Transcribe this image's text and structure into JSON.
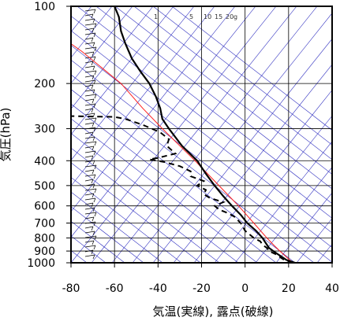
{
  "chart_data": {
    "type": "skew-t",
    "xlabel": "気温(実線), 露点(破線)",
    "ylabel": "気圧(hPa)",
    "xlim": [
      -80,
      40
    ],
    "plim": [
      1000,
      100
    ],
    "x_ticks": [
      -80,
      -60,
      -40,
      -20,
      0,
      20,
      40
    ],
    "x_tick_labels": [
      "-80",
      "-60",
      "-40",
      "-20",
      "0",
      "20",
      "40"
    ],
    "p_ticks": [
      1000,
      900,
      800,
      700,
      600,
      500,
      400,
      300,
      200,
      100
    ],
    "p_tick_labels": [
      "1000",
      "900",
      "800",
      "700",
      "600",
      "500",
      "400",
      "300",
      "200",
      "100"
    ],
    "mixing_ratio_labels": [
      "1",
      "5",
      "10",
      "15",
      "20",
      "g"
    ],
    "grid": true,
    "colors": {
      "temperature": "#000000",
      "dewpoint": "#000000",
      "parcel": "#ff2020",
      "isotherm": "#3030c0",
      "adiabat": "#3030c0",
      "frame": "#000000"
    },
    "temperature": [
      {
        "p": 1000,
        "x": 23
      },
      {
        "p": 975,
        "x": 19
      },
      {
        "p": 950,
        "x": 17
      },
      {
        "p": 925,
        "x": 15
      },
      {
        "p": 900,
        "x": 13
      },
      {
        "p": 875,
        "x": 11
      },
      {
        "p": 850,
        "x": 10
      },
      {
        "p": 825,
        "x": 9
      },
      {
        "p": 800,
        "x": 8
      },
      {
        "p": 750,
        "x": 5
      },
      {
        "p": 700,
        "x": 1
      },
      {
        "p": 650,
        "x": -2
      },
      {
        "p": 600,
        "x": -6
      },
      {
        "p": 550,
        "x": -10
      },
      {
        "p": 500,
        "x": -14
      },
      {
        "p": 450,
        "x": -18
      },
      {
        "p": 400,
        "x": -22
      },
      {
        "p": 350,
        "x": -29
      },
      {
        "p": 300,
        "x": -35
      },
      {
        "p": 275,
        "x": -38
      },
      {
        "p": 250,
        "x": -39
      },
      {
        "p": 225,
        "x": -41
      },
      {
        "p": 200,
        "x": -44
      },
      {
        "p": 180,
        "x": -48
      },
      {
        "p": 160,
        "x": -52
      },
      {
        "p": 140,
        "x": -55
      },
      {
        "p": 125,
        "x": -57
      },
      {
        "p": 110,
        "x": -58
      },
      {
        "p": 100,
        "x": -60
      }
    ],
    "dewpoint": [
      {
        "p": 1000,
        "x": 22
      },
      {
        "p": 975,
        "x": 18
      },
      {
        "p": 950,
        "x": 16
      },
      {
        "p": 925,
        "x": 14
      },
      {
        "p": 900,
        "x": 11
      },
      {
        "p": 875,
        "x": 10
      },
      {
        "p": 850,
        "x": 8
      },
      {
        "p": 825,
        "x": 7
      },
      {
        "p": 800,
        "x": 4
      },
      {
        "p": 750,
        "x": 0
      },
      {
        "p": 700,
        "x": -2
      },
      {
        "p": 660,
        "x": -5
      },
      {
        "p": 640,
        "x": -8
      },
      {
        "p": 620,
        "x": -12
      },
      {
        "p": 600,
        "x": -14
      },
      {
        "p": 580,
        "x": -10
      },
      {
        "p": 560,
        "x": -16
      },
      {
        "p": 540,
        "x": -19
      },
      {
        "p": 520,
        "x": -18
      },
      {
        "p": 500,
        "x": -22
      },
      {
        "p": 480,
        "x": -19
      },
      {
        "p": 460,
        "x": -25
      },
      {
        "p": 440,
        "x": -25
      },
      {
        "p": 420,
        "x": -30
      },
      {
        "p": 405,
        "x": -37
      },
      {
        "p": 395,
        "x": -44
      },
      {
        "p": 390,
        "x": -40
      },
      {
        "p": 375,
        "x": -32
      },
      {
        "p": 350,
        "x": -36
      },
      {
        "p": 330,
        "x": -35
      },
      {
        "p": 310,
        "x": -39
      },
      {
        "p": 290,
        "x": -47
      },
      {
        "p": 275,
        "x": -55
      },
      {
        "p": 270,
        "x": -60
      },
      {
        "p": 268,
        "x": -80
      }
    ],
    "parcel": [
      {
        "p": 1000,
        "x": 22
      },
      {
        "p": 950,
        "x": 19
      },
      {
        "p": 900,
        "x": 16
      },
      {
        "p": 850,
        "x": 13
      },
      {
        "p": 800,
        "x": 10
      },
      {
        "p": 700,
        "x": 4
      },
      {
        "p": 600,
        "x": -3
      },
      {
        "p": 500,
        "x": -12
      },
      {
        "p": 400,
        "x": -23
      },
      {
        "p": 300,
        "x": -38
      },
      {
        "p": 250,
        "x": -47
      },
      {
        "p": 200,
        "x": -57
      },
      {
        "p": 150,
        "x": -75
      },
      {
        "p": 140,
        "x": -80
      }
    ]
  }
}
